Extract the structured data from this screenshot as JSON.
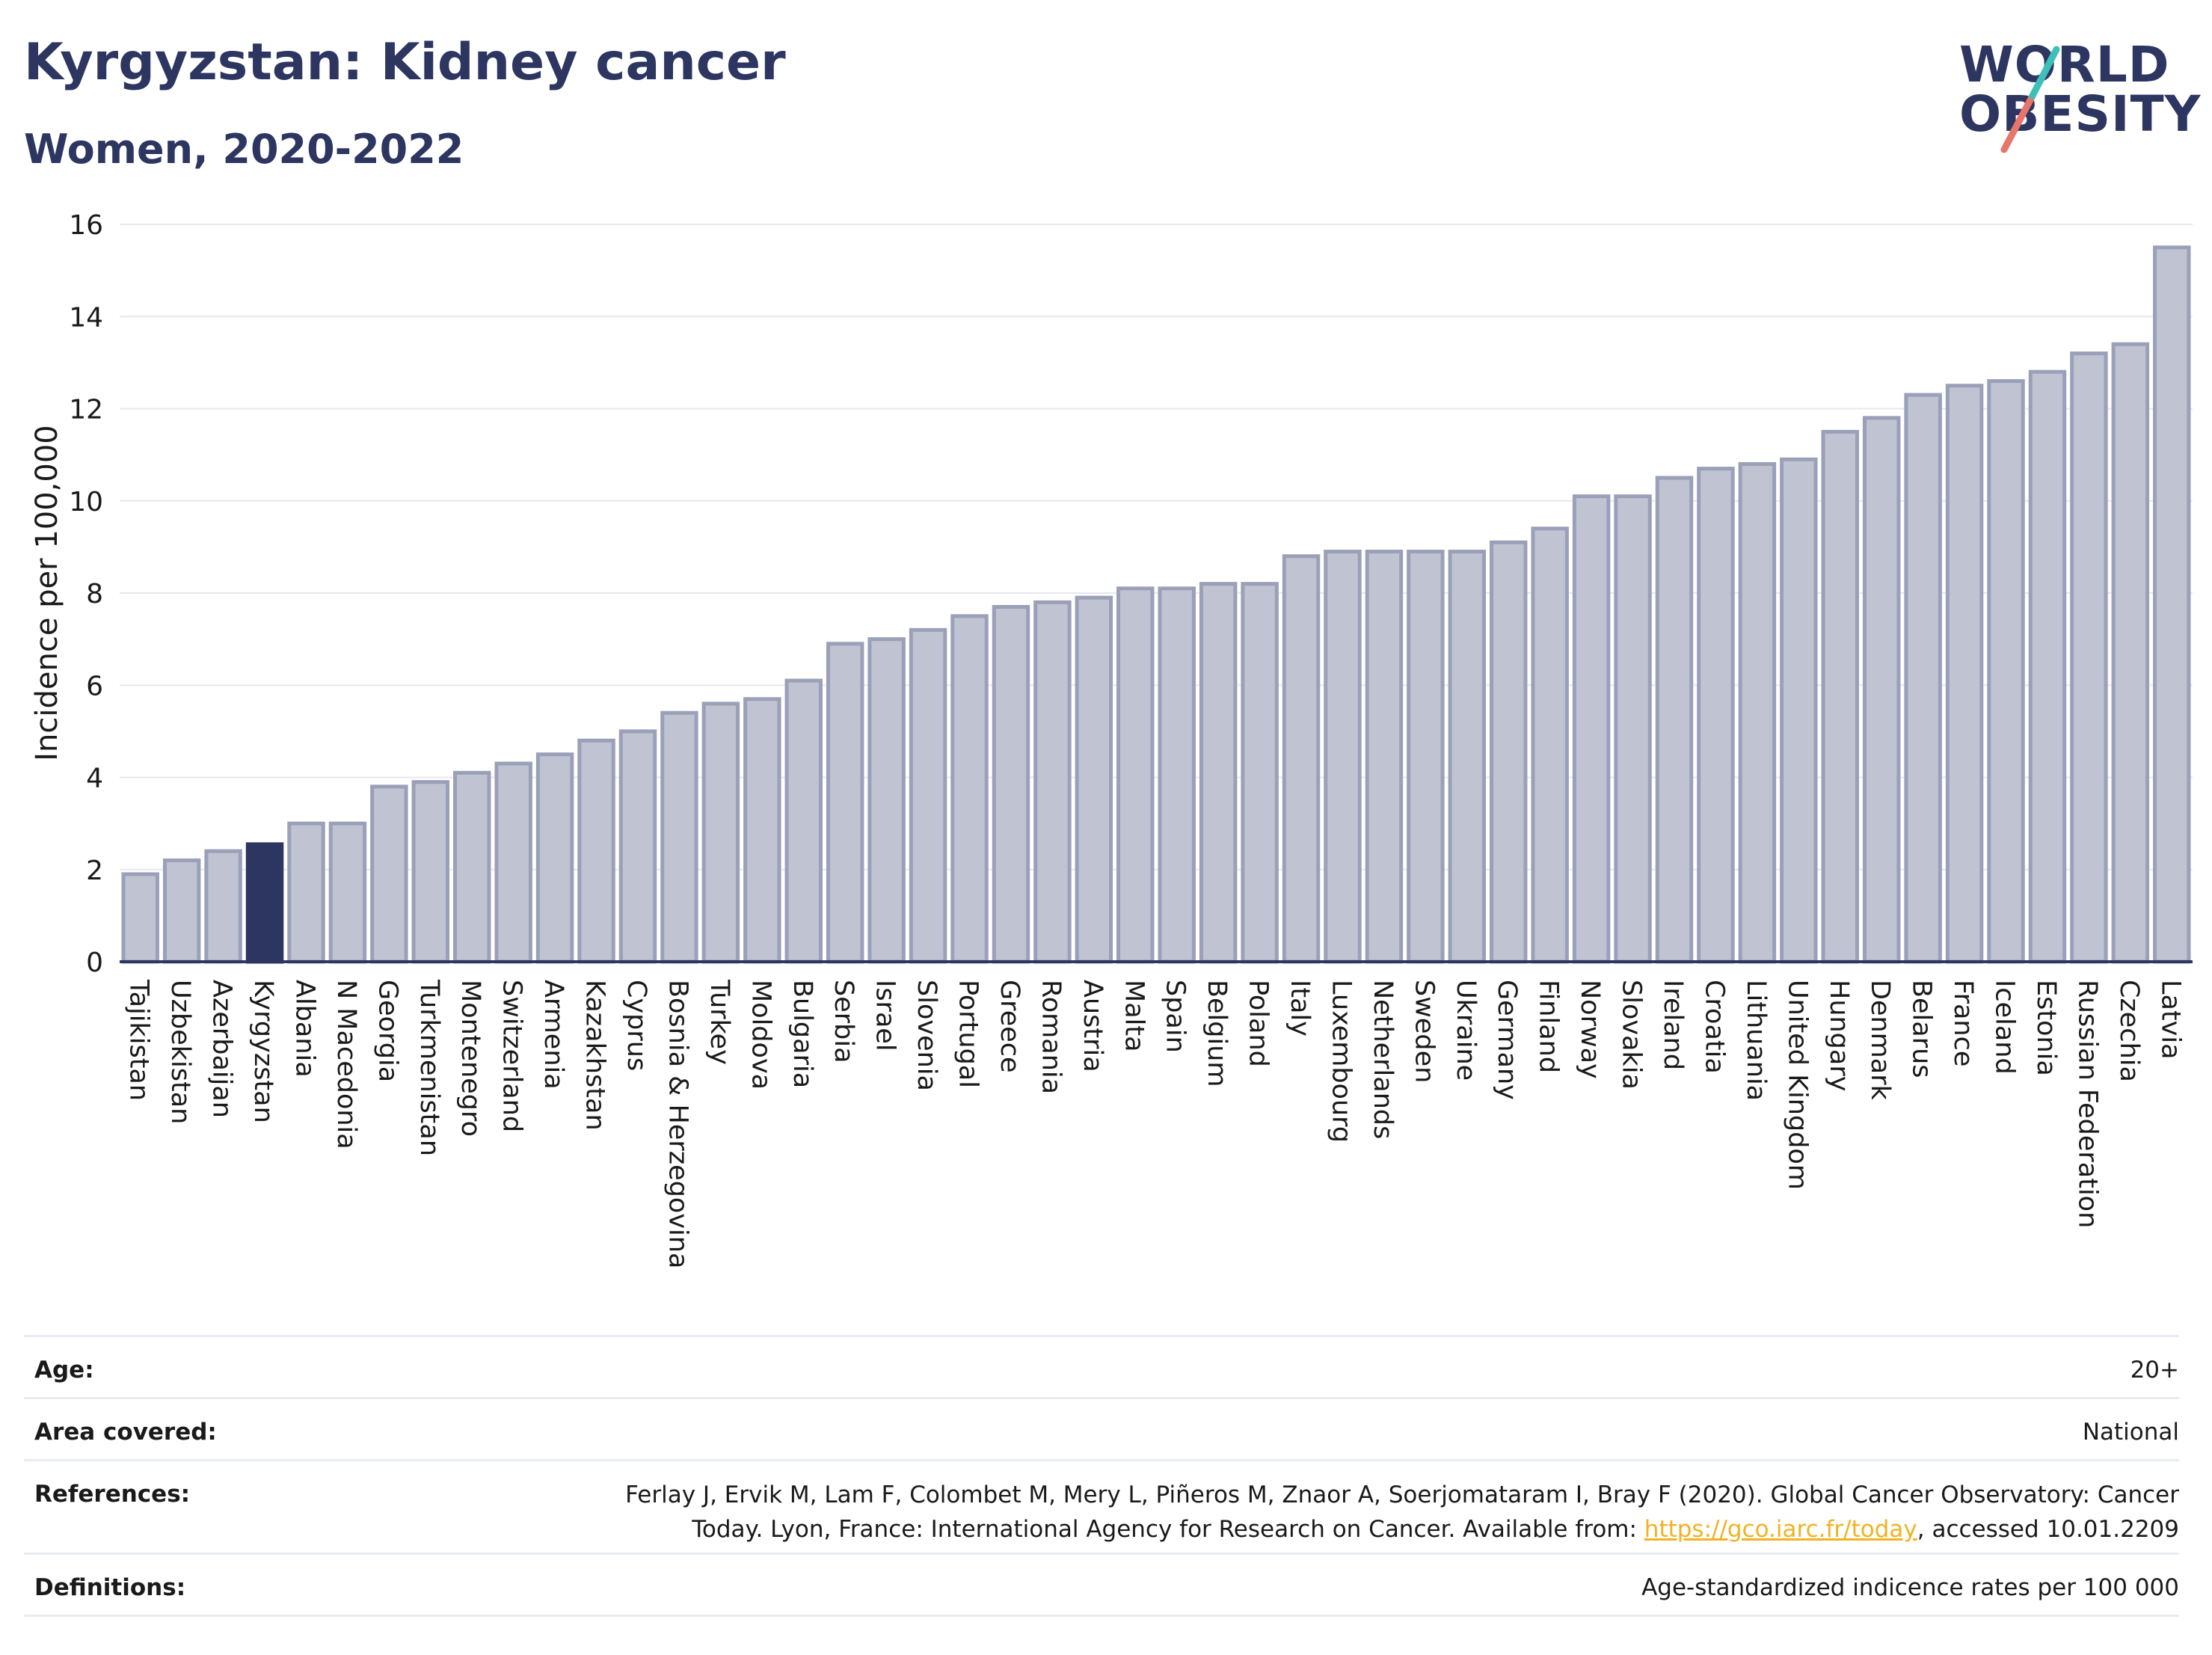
{
  "header": {
    "title": "Kyrgyzstan: Kidney cancer",
    "subtitle": "Women, 2020-2022"
  },
  "logo": {
    "line1": "WORLD",
    "line2": "OBESITY"
  },
  "colors": {
    "bar": "#bfc3d2",
    "bar_border": "#9aa0b8",
    "highlight": "#2d3561",
    "grid": "#e6e8ef",
    "axis": "#2d3561",
    "link": "#f0b323"
  },
  "chart_data": {
    "type": "bar",
    "ylabel": "Incidence per 100,000",
    "ylim": [
      0,
      16
    ],
    "yticks": [
      0,
      2,
      4,
      6,
      8,
      10,
      12,
      14,
      16
    ],
    "grid": true,
    "highlight": "Kyrgyzstan",
    "categories": [
      "Tajikistan",
      "Uzbekistan",
      "Azerbaijan",
      "Kyrgyzstan",
      "Albania",
      "N Macedonia",
      "Georgia",
      "Turkmenistan",
      "Montenegro",
      "Switzerland",
      "Armenia",
      "Kazakhstan",
      "Cyprus",
      "Bosnia & Herzegovina",
      "Turkey",
      "Moldova",
      "Bulgaria",
      "Serbia",
      "Israel",
      "Slovenia",
      "Portugal",
      "Greece",
      "Romania",
      "Austria",
      "Malta",
      "Spain",
      "Belgium",
      "Poland",
      "Italy",
      "Luxembourg",
      "Netherlands",
      "Sweden",
      "Ukraine",
      "Germany",
      "Finland",
      "Norway",
      "Slovakia",
      "Ireland",
      "Croatia",
      "Lithuania",
      "United Kingdom",
      "Hungary",
      "Denmark",
      "Belarus",
      "France",
      "Iceland",
      "Estonia",
      "Russian Federation",
      "Czechia",
      "Latvia"
    ],
    "values": [
      1.9,
      2.2,
      2.4,
      2.55,
      3.0,
      3.0,
      3.8,
      3.9,
      4.1,
      4.3,
      4.5,
      4.8,
      5.0,
      5.4,
      5.6,
      5.7,
      6.1,
      6.9,
      7.0,
      7.2,
      7.5,
      7.7,
      7.8,
      7.9,
      8.1,
      8.1,
      8.2,
      8.2,
      8.8,
      8.9,
      8.9,
      8.9,
      8.9,
      9.1,
      9.4,
      10.1,
      10.1,
      10.5,
      10.7,
      10.8,
      10.9,
      11.5,
      11.8,
      12.3,
      12.5,
      12.6,
      12.8,
      13.2,
      13.4,
      15.5
    ]
  },
  "info": {
    "age_label": "Age:",
    "age_value": "20+",
    "area_label": "Area covered:",
    "area_value": "National",
    "references_label": "References:",
    "references_line1": "Ferlay J, Ervik M, Lam F, Colombet M, Mery L, Piñeros M, Znaor A, Soerjomataram I, Bray F (2020). Global Cancer Observatory: Cancer",
    "references_line2_pre": "Today. Lyon, France: International Agency for Research on Cancer. Available from: ",
    "references_link": "https://gco.iarc.fr/today",
    "references_line2_post": ", accessed 10.01.2209",
    "definitions_label": "Definitions:",
    "definitions_value": "Age-standardized indicence rates per 100 000"
  }
}
